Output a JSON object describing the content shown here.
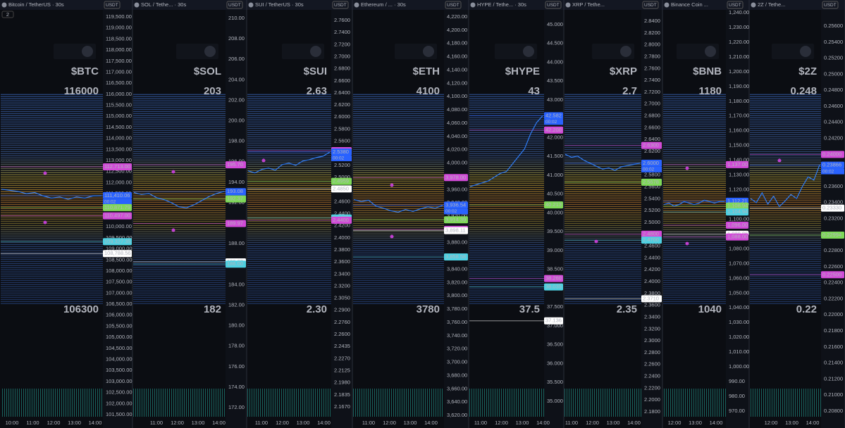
{
  "badge": "2",
  "panels": [
    {
      "title": "Bitcoin / TetherUS · 30s",
      "currency": "USDT",
      "ticker": "$BTC",
      "high": "116000",
      "low": "106300",
      "ticks": [
        "119,500.00",
        "119,000.00",
        "118,500.00",
        "118,000.00",
        "117,500.00",
        "117,000.00",
        "116,500.00",
        "116,000.00",
        "115,500.00",
        "115,000.00",
        "114,500.00",
        "114,000.00",
        "113,500.00",
        "113,000.00",
        "112,500.00",
        "112,000.00",
        "111,500.00",
        "111,000.00",
        "110,500.00",
        "110,000.00",
        "109,500.00",
        "109,000.00",
        "108,500.00",
        "108,000.00",
        "107,500.00",
        "107,000.00",
        "106,500.00",
        "106,000.00",
        "105,500.00",
        "105,000.00",
        "104,500.00",
        "104,000.00",
        "103,500.00",
        "103,000.00",
        "102,500.00",
        "102,000.00",
        "101,500.00"
      ],
      "ylim": [
        101500,
        119500
      ],
      "price": [
        111700,
        111650,
        111600,
        111500,
        111550,
        111400,
        111300,
        111350,
        111250,
        111350,
        111300,
        111400,
        111410
      ],
      "tags": [
        {
          "value": 112713,
          "label": "112,713.00",
          "color": "#d24bd8"
        },
        {
          "value": 111410.06,
          "label": "111,410.06",
          "color": "#2962ff",
          "timer": "00:02"
        },
        {
          "value": 110871.79,
          "label": "110,871.79",
          "color": "#7ed957"
        },
        {
          "value": 110497,
          "label": "110,497.00",
          "color": "#d24bd8"
        },
        {
          "value": 109327.35,
          "label": "109,327.35",
          "color": "#4dd0e1"
        },
        {
          "value": 108788.56,
          "label": "108,788.56",
          "color": "#ffffff"
        }
      ],
      "times": [
        "10:00",
        "11:00",
        "12:00",
        "13:00",
        "14:00"
      ]
    },
    {
      "title": "SOL / Tethe... · 30s",
      "currency": "USDT",
      "ticker": "$SOL",
      "high": "203",
      "low": "182",
      "ticks": [
        "210.00",
        "208.00",
        "206.00",
        "204.00",
        "202.00",
        "200.00",
        "198.00",
        "196.00",
        "194.00",
        "192.00",
        "190.00",
        "188.00",
        "186.00",
        "184.00",
        "182.00",
        "180.00",
        "178.00",
        "176.00",
        "174.00",
        "172.00"
      ],
      "ylim": [
        172,
        210
      ],
      "price": [
        193.0,
        192.8,
        192.9,
        192.5,
        192.3,
        192.0,
        191.6,
        191.5,
        191.8,
        192.2,
        192.6,
        192.9,
        193.1
      ],
      "tags": [
        {
          "value": 195.7,
          "label": "195.70",
          "color": "#d24bd8"
        },
        {
          "value": 193.08,
          "label": "193.08",
          "color": "#2962ff",
          "timer": "00:02"
        },
        {
          "value": 192.37,
          "label": "192.37",
          "color": "#7ed957"
        },
        {
          "value": 189.97,
          "label": "189.97",
          "color": "#d24bd8"
        },
        {
          "value": 186.22,
          "label": "186.22",
          "color": "#ffffff"
        },
        {
          "value": 186,
          "label": "186.00",
          "color": "#4dd0e1"
        }
      ],
      "times": [
        "11:00",
        "12:00",
        "13:00",
        "14:00"
      ]
    },
    {
      "title": "SUI / TetherUS · 30s",
      "currency": "USDT",
      "ticker": "$SUI",
      "high": "2.63",
      "low": "2.30",
      "ticks": [
        "2.7600",
        "2.7400",
        "2.7200",
        "2.7000",
        "2.6800",
        "2.6600",
        "2.6400",
        "2.6200",
        "2.6000",
        "2.5800",
        "2.5600",
        "2.5400",
        "2.5200",
        "2.5000",
        "2.4800",
        "2.4600",
        "2.4400",
        "2.4200",
        "2.4000",
        "2.3800",
        "2.3600",
        "2.3400",
        "2.3200",
        "2.3050",
        "2.2900",
        "2.2760",
        "2.2600",
        "2.2435",
        "2.2270",
        "2.2125",
        "2.1980",
        "2.1835",
        "2.1670"
      ],
      "ylim": [
        2.172,
        2.727
      ],
      "price": [
        2.511,
        2.508,
        2.513,
        2.515,
        2.512,
        2.52,
        2.522,
        2.519,
        2.525,
        2.527,
        2.53,
        2.532,
        2.538
      ],
      "tags": [
        {
          "value": 2.54,
          "label": "2.5400",
          "color": "#d24bd8"
        },
        {
          "value": 2.538,
          "label": "2.5380",
          "color": "#2962ff",
          "timer": "00:02"
        },
        {
          "value": 2.4959,
          "label": "2.4959",
          "color": "#7ed957"
        },
        {
          "value": 2.485,
          "label": "2.4850",
          "color": "#ffffff"
        },
        {
          "value": 2.4433,
          "label": "2.4433",
          "color": "#4dd0e1"
        },
        {
          "value": 2.44,
          "label": "2.4400",
          "color": "#d24bd8"
        }
      ],
      "times": [
        "11:00",
        "12:00",
        "13:00",
        "14:00"
      ]
    },
    {
      "title": "Ethereum / ... · 30s",
      "currency": "USDT",
      "ticker": "$ETH",
      "high": "4100",
      "low": "3780",
      "ticks": [
        "4,220.00",
        "4,200.00",
        "4,180.00",
        "4,160.00",
        "4,140.00",
        "4,120.00",
        "4,100.00",
        "4,080.00",
        "4,060.00",
        "4,040.00",
        "4,020.00",
        "4,000.00",
        "3,980.00",
        "3,960.00",
        "3,940.00",
        "3,920.00",
        "3,900.00",
        "3,880.00",
        "3,860.00",
        "3,840.00",
        "3,820.00",
        "3,800.00",
        "3,780.00",
        "3,760.00",
        "3,740.00",
        "3,720.00",
        "3,700.00",
        "3,680.00",
        "3,660.00",
        "3,640.00",
        "3,620.00"
      ],
      "ylim": [
        3620,
        4220
      ],
      "price": [
        3945,
        3942,
        3944,
        3935,
        3932,
        3928,
        3926,
        3930,
        3927,
        3931,
        3934,
        3932,
        3936
      ],
      "tags": [
        {
          "value": 3978,
          "label": "3,978.00",
          "color": "#d24bd8"
        },
        {
          "value": 3936.54,
          "label": "3,936.54",
          "color": "#2962ff",
          "timer": "00:02"
        },
        {
          "value": 3914.39,
          "label": "3,914.39",
          "color": "#7ed957"
        },
        {
          "value": 3900,
          "label": "3,900.00",
          "color": "#d24bd8"
        },
        {
          "value": 3898.11,
          "label": "3,898.11",
          "color": "#ffffff"
        },
        {
          "value": 3858.58,
          "label": "3,858.58",
          "color": "#4dd0e1"
        }
      ],
      "times": [
        "11:00",
        "12:00",
        "13:00",
        "14:00"
      ]
    },
    {
      "title": "HYPE / Tethe... · 30s",
      "currency": "USDT",
      "ticker": "$HYPE",
      "high": "43",
      "low": "37.5",
      "ticks": [
        "45.000",
        "44.500",
        "44.000",
        "43.500",
        "43.000",
        "42.500",
        "42.000",
        "41.500",
        "41.000",
        "40.500",
        "40.000",
        "39.500",
        "39.000",
        "38.500",
        "38.000",
        "37.500",
        "37.000",
        "36.500",
        "36.000",
        "35.500",
        "35.000"
      ],
      "ylim": [
        35,
        45
      ],
      "price": [
        40.7,
        40.75,
        40.8,
        40.85,
        40.95,
        41.05,
        41.1,
        41.3,
        41.5,
        41.7,
        42.1,
        42.4,
        42.58
      ],
      "tags": [
        {
          "value": 42.582,
          "label": "42.582",
          "color": "#2962ff",
          "timer": "00:02"
        },
        {
          "value": 42.2,
          "label": "42.200",
          "color": "#d24bd8"
        },
        {
          "value": 40.213,
          "label": "40.213",
          "color": "#7ed957"
        },
        {
          "value": 38.26,
          "label": "38.260",
          "color": "#d24bd8"
        },
        {
          "value": 38.035,
          "label": "38.035",
          "color": "#4dd0e1"
        },
        {
          "value": 37.136,
          "label": "37.136",
          "color": "#ffffff"
        }
      ],
      "times": [
        "11:00",
        "12:00",
        "13:00",
        "14:00"
      ]
    },
    {
      "title": "XRP / Tethe...",
      "currency": "USDT",
      "ticker": "$XRP",
      "high": "2.7",
      "low": "2.35",
      "ticks": [
        "2.8400",
        "2.8200",
        "2.8000",
        "2.7800",
        "2.7600",
        "2.7400",
        "2.7200",
        "2.7000",
        "2.6800",
        "2.6600",
        "2.6400",
        "2.6200",
        "2.6000",
        "2.5800",
        "2.5600",
        "2.5400",
        "2.5200",
        "2.5000",
        "2.4800",
        "2.4600",
        "2.4400",
        "2.4200",
        "2.4000",
        "2.3800",
        "2.3600",
        "2.3400",
        "2.3200",
        "2.3000",
        "2.2800",
        "2.2600",
        "2.2400",
        "2.2200",
        "2.2000",
        "2.1800"
      ],
      "ylim": [
        2.18,
        2.84
      ],
      "price": [
        2.615,
        2.61,
        2.612,
        2.605,
        2.6,
        2.595,
        2.59,
        2.592,
        2.588,
        2.594,
        2.596,
        2.598,
        2.6
      ],
      "tags": [
        {
          "value": 2.63,
          "label": "2.6300",
          "color": "#d24bd8"
        },
        {
          "value": 2.6,
          "label": "2.6000",
          "color": "#2962ff",
          "timer": "00:02"
        },
        {
          "value": 2.5678,
          "label": "2.5678",
          "color": "#7ed957"
        },
        {
          "value": 2.48,
          "label": "2.4800",
          "color": "#d24bd8"
        },
        {
          "value": 2.47,
          "label": "2.4700",
          "color": "#4dd0e1"
        },
        {
          "value": 2.371,
          "label": "2.3710",
          "color": "#ffffff"
        }
      ],
      "times": [
        "11:00",
        "12:00",
        "13:00",
        "14:00"
      ]
    },
    {
      "title": "Binance Coin ...",
      "currency": "USDT",
      "ticker": "$BNB",
      "high": "1180",
      "low": "1040",
      "ticks": [
        "1,240.00",
        "1,230.00",
        "1,220.00",
        "1,210.00",
        "1,200.00",
        "1,190.00",
        "1,180.00",
        "1,170.00",
        "1,160.00",
        "1,150.00",
        "1,140.00",
        "1,130.00",
        "1,120.00",
        "1,110.00",
        "1,100.00",
        "1,090.00",
        "1,080.00",
        "1,070.00",
        "1,060.00",
        "1,050.00",
        "1,040.00",
        "1,030.00",
        "1,020.00",
        "1,010.00",
        "1,000.00",
        "990.00",
        "980.00",
        "970.00"
      ],
      "ylim": [
        970,
        1240
      ],
      "price": [
        1110,
        1111,
        1109,
        1110,
        1112,
        1111,
        1110,
        1111,
        1113,
        1112,
        1111,
        1112,
        1112
      ],
      "tags": [
        {
          "value": 1137,
          "label": "1,137.00",
          "color": "#d24bd8"
        },
        {
          "value": 1112.21,
          "label": "1,112.21",
          "color": "#2962ff",
          "timer": "00:02"
        },
        {
          "value": 1108.94,
          "label": "1,108.94",
          "color": "#7ed957"
        },
        {
          "value": 1104.94,
          "label": "1,104.94",
          "color": "#4dd0e1"
        },
        {
          "value": 1096,
          "label": "1,096.00",
          "color": "#d24bd8"
        },
        {
          "value": 1089.86,
          "label": "1,089.86",
          "color": "#ffffff"
        },
        {
          "value": 1088,
          "label": "1,088.00",
          "color": "#d24bd8"
        }
      ],
      "times": [
        "12:00",
        "13:00",
        "14:00"
      ]
    },
    {
      "title": "2Z / Tethe...",
      "currency": "USDT",
      "ticker": "$2Z",
      "high": "0.248",
      "low": "0.22",
      "ticks": [
        "0.25600",
        "0.25400",
        "0.25200",
        "0.25000",
        "0.24800",
        "0.24600",
        "0.24400",
        "0.24200",
        "0.24000",
        "0.23800",
        "0.23600",
        "0.23400",
        "0.23200",
        "0.23000",
        "0.22800",
        "0.22600",
        "0.22400",
        "0.22200",
        "0.22000",
        "0.21800",
        "0.21600",
        "0.21400",
        "0.21200",
        "0.21000",
        "0.20800"
      ],
      "ylim": [
        0.208,
        0.256
      ],
      "price": [
        0.2345,
        0.234,
        0.2352,
        0.2338,
        0.2348,
        0.2335,
        0.2342,
        0.235,
        0.2345,
        0.236,
        0.2372,
        0.2368,
        0.2387
      ],
      "tags": [
        {
          "value": 0.24,
          "label": "0.24000",
          "color": "#d24bd8"
        },
        {
          "value": 0.23866,
          "label": "0.23866",
          "color": "#2962ff",
          "timer": "00:02"
        },
        {
          "value": 0.2333,
          "label": "0.23330",
          "color": "#ffffff"
        },
        {
          "value": 0.22994,
          "label": "0.22994",
          "color": "#7ed957"
        },
        {
          "value": 0.225,
          "label": "0.22500",
          "color": "#d24bd8"
        }
      ],
      "times": [
        "12:00",
        "13:00",
        "14:00"
      ]
    }
  ]
}
